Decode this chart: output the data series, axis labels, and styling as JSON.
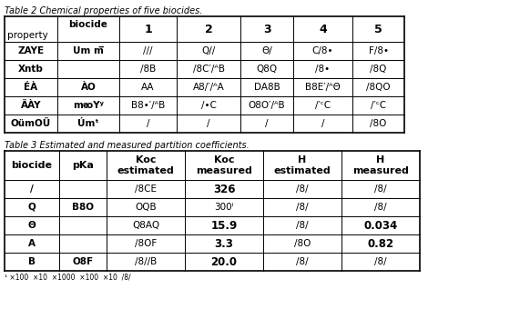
{
  "title1": "Table 2 Chemical properties of five biocides.",
  "title2": "Table 3 Estimated and measured partition coefficients.",
  "table1": {
    "col_headers": [
      "",
      "biocide",
      "1",
      "2",
      "3",
      "4",
      "5"
    ],
    "row_label": "property",
    "rows": [
      [
        "ZAYE",
        "Um m̅",
        "///",
        "Q//",
        "Θ/",
        "C/8•",
        "F/8•"
      ],
      [
        "Xntb",
        "",
        "/8B",
        "/8C′/ᴬB",
        "Q8Q",
        "/8•",
        "/8Q"
      ],
      [
        "ÉÀ",
        "ÀO",
        "AA",
        "A8/′/ᴬA",
        "DA8B",
        "B8E′/ᴬΘ",
        "/8QO"
      ],
      [
        "ÄÀY",
        "mᴔYʸ",
        "B8•′/ᴬB",
        "/•C",
        "O8O′/ᴬB",
        "/′ᶜC",
        "/′ᶜC"
      ],
      [
        "OümOÜ",
        "Úmᵗ",
        "/",
        "/",
        "/",
        "/",
        "/8O"
      ]
    ]
  },
  "table2": {
    "col_headers": [
      "biocide",
      "pKa",
      "Koc\nestimated",
      "Koc\nmeasured",
      "H\nestimated",
      "H\nmeasured"
    ],
    "rows": [
      [
        "/",
        "",
        "/8CE",
        "326",
        "/8/",
        "/8/"
      ],
      [
        "Q",
        "B8O",
        "OQB",
        "300ⁱ",
        "/8/",
        "/8/"
      ],
      [
        "Θ",
        "",
        "Q8AQ",
        "15.9",
        "/8/",
        "0.034"
      ],
      [
        "A",
        "",
        "/8OF",
        "3.3",
        "/8O",
        "0.82"
      ],
      [
        "B",
        "O8F",
        "/8//B",
        "20.0",
        "/8/",
        "/8/"
      ]
    ]
  },
  "bold_measured": [
    "326",
    "300",
    "15.9",
    "3.3",
    "20.0",
    "0.034",
    "0.82"
  ],
  "bg_color": "#ffffff",
  "footnote": "a ×100 ×10 ×1000 ×100 ×10 /8/"
}
